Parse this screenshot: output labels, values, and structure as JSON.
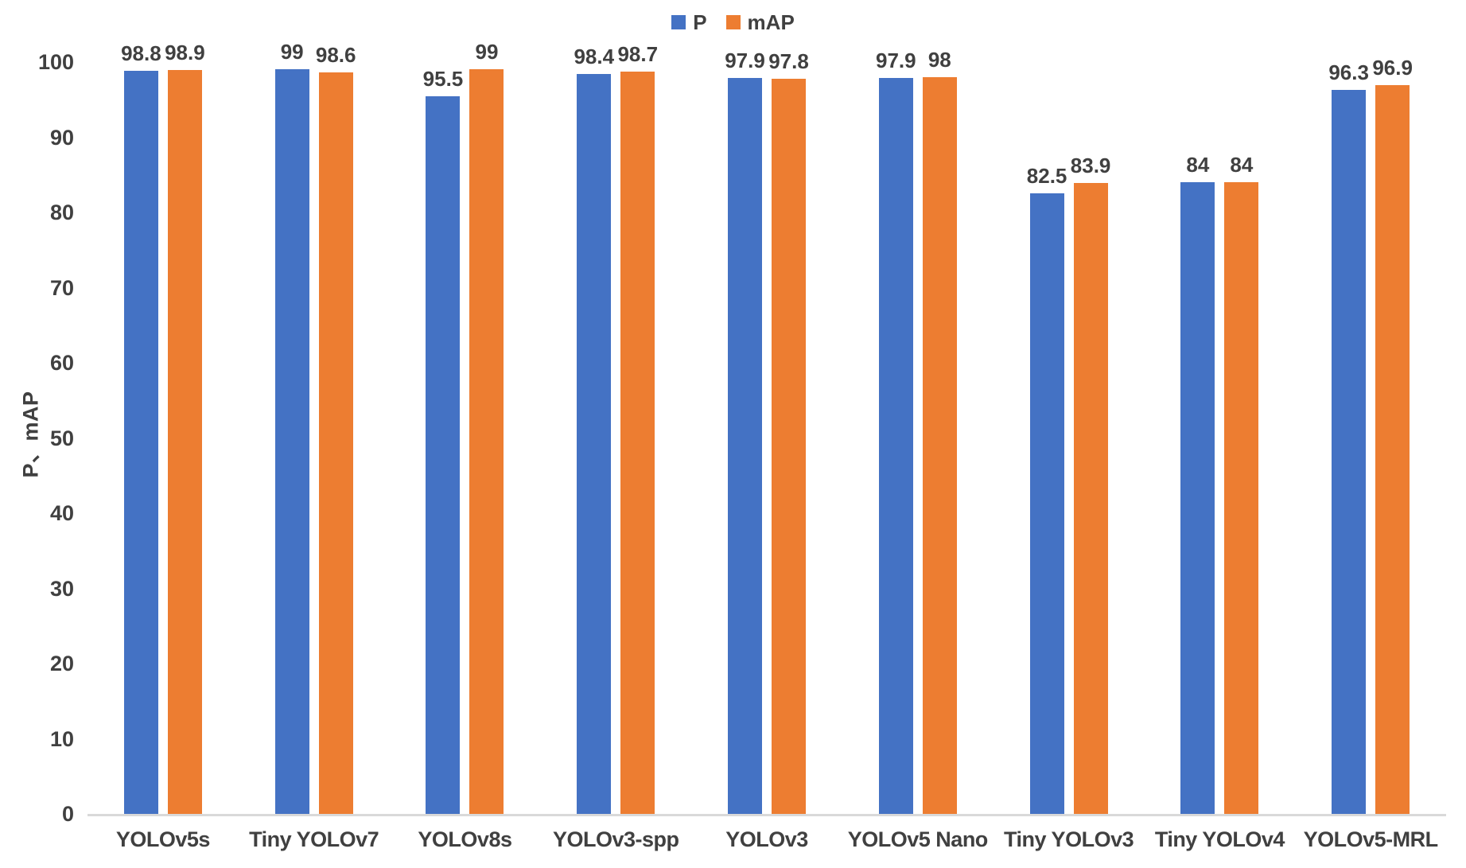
{
  "chart_data": {
    "type": "bar",
    "title": "",
    "categories": [
      "YOLOv5s",
      "Tiny YOLOv7",
      "YOLOv8s",
      "YOLOv3-spp",
      "YOLOv3",
      "YOLOv5 Nano",
      "Tiny YOLOv3",
      "Tiny YOLOv4",
      "YOLOv5-MRL"
    ],
    "series": [
      {
        "name": "P",
        "color": "#4472C4",
        "values": [
          98.8,
          99,
          95.5,
          98.4,
          97.9,
          97.9,
          82.5,
          84,
          96.3
        ]
      },
      {
        "name": "mAP",
        "color": "#ED7D31",
        "values": [
          98.9,
          98.6,
          99,
          98.7,
          97.8,
          98,
          83.9,
          84,
          96.9
        ]
      }
    ],
    "xlabel": "",
    "ylabel": "P、mAP",
    "ylim": [
      0,
      100
    ],
    "yticks": [
      0,
      10,
      20,
      30,
      40,
      50,
      60,
      70,
      80,
      90,
      100
    ],
    "grid": false,
    "legend_position": "top-center",
    "value_labels": "outside-end",
    "axis_line_color": "#D9D9D9",
    "text_color": "#404040"
  }
}
